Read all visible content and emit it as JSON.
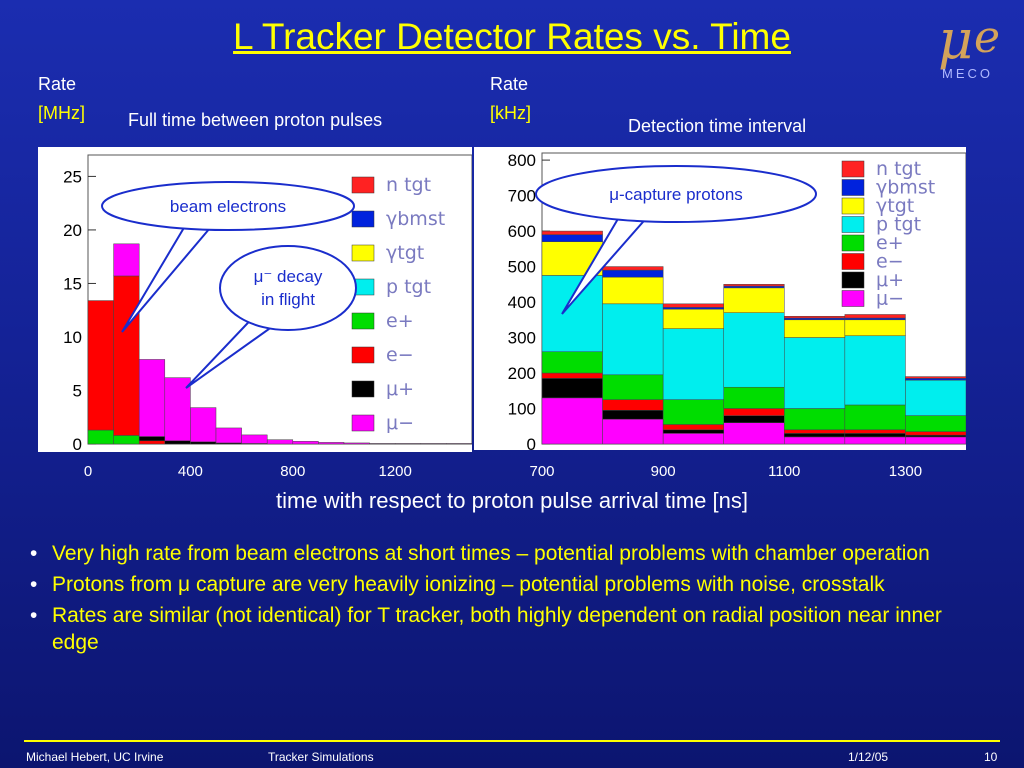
{
  "slide": {
    "title": "L Tracker Detector Rates vs. Time",
    "logo_text": "MECO",
    "x_axis_title": "time with respect to proton pulse arrival time [ns]",
    "bullets": [
      "Very high rate from beam electrons at short times – potential problems with chamber operation",
      "Protons from μ capture are very heavily ionizing – potential problems with noise, crosstalk",
      "Rates are similar (not identical) for T tracker, both highly dependent on radial position near inner edge"
    ],
    "footer": {
      "author": "Michael Hebert, UC Irvine",
      "topic": "Tracker Simulations",
      "date": "1/12/05",
      "page": "10"
    }
  },
  "chart_data": [
    {
      "type": "bar",
      "stacked": true,
      "subtitle": "Full time between proton pulses",
      "ylabel_line1": "Rate",
      "ylabel_line2": "[MHz]",
      "ylim": [
        0,
        27
      ],
      "yticks": [
        "25",
        "20",
        "15",
        "10",
        "5",
        "0"
      ],
      "xticks": [
        "0",
        "400",
        "800",
        "1200"
      ],
      "x_bins": [
        0,
        100,
        200,
        300,
        400,
        500,
        600,
        700,
        800,
        900,
        1000,
        1100,
        1200,
        1300,
        1400,
        1500
      ],
      "legend": [
        "n tgt",
        "γbmst",
        "γtgt",
        "p tgt",
        "e+",
        "e−",
        "μ+",
        "μ−"
      ],
      "legend_colors": [
        "#ff2222",
        "#0022dd",
        "#ffff00",
        "#00eeee",
        "#00dd00",
        "#ff0000",
        "#000000",
        "#ff00ff"
      ],
      "series": [
        {
          "name": "e+",
          "color": "#00dd00",
          "values": [
            1.3,
            0.8,
            0.0,
            0.0,
            0.0,
            0.0,
            0.0,
            0.0,
            0.0,
            0.0,
            0.0,
            0.0,
            0.0,
            0.0,
            0.0
          ]
        },
        {
          "name": "e−",
          "color": "#ff0000",
          "values": [
            12.1,
            14.9,
            0.3,
            0.0,
            0.0,
            0.0,
            0.0,
            0.0,
            0.0,
            0.0,
            0.0,
            0.0,
            0.0,
            0.0,
            0.0
          ]
        },
        {
          "name": "μ+",
          "color": "#000000",
          "values": [
            0.0,
            0.0,
            0.4,
            0.3,
            0.2,
            0.1,
            0.05,
            0.0,
            0.0,
            0.0,
            0.0,
            0.0,
            0.0,
            0.0,
            0.0
          ]
        },
        {
          "name": "μ−",
          "color": "#ff00ff",
          "values": [
            0.0,
            3.0,
            7.2,
            5.9,
            3.2,
            1.4,
            0.8,
            0.4,
            0.25,
            0.15,
            0.1,
            0.05,
            0.05,
            0.05,
            0.05
          ]
        }
      ],
      "annotations": [
        {
          "text": "beam electrons"
        },
        {
          "text_line1": "μ⁻ decay",
          "text_line2": "in flight"
        }
      ]
    },
    {
      "type": "bar",
      "stacked": true,
      "subtitle": "Detection time interval",
      "ylabel_line1": "Rate",
      "ylabel_line2": "[kHz]",
      "ylim": [
        0,
        820
      ],
      "yticks": [
        "800",
        "700",
        "600",
        "500",
        "400",
        "300",
        "200",
        "100",
        "0"
      ],
      "xticks": [
        "700",
        "900",
        "1100",
        "1300"
      ],
      "x_bins": [
        700,
        800,
        900,
        1000,
        1100,
        1200,
        1300,
        1400
      ],
      "legend": [
        "n tgt",
        "γbmst",
        "γtgt",
        "p tgt",
        "e+",
        "e−",
        "μ+",
        "μ−"
      ],
      "legend_colors": [
        "#ff2222",
        "#0022dd",
        "#ffff00",
        "#00eeee",
        "#00dd00",
        "#ff0000",
        "#000000",
        "#ff00ff"
      ],
      "series": [
        {
          "name": "μ−",
          "color": "#ff00ff",
          "values": [
            130,
            70,
            30,
            60,
            20,
            20,
            20
          ]
        },
        {
          "name": "μ+",
          "color": "#000000",
          "values": [
            55,
            25,
            10,
            20,
            10,
            10,
            5
          ]
        },
        {
          "name": "e−",
          "color": "#ff0000",
          "values": [
            15,
            30,
            15,
            20,
            10,
            10,
            10
          ]
        },
        {
          "name": "e+",
          "color": "#00dd00",
          "values": [
            60,
            70,
            70,
            60,
            60,
            70,
            45
          ]
        },
        {
          "name": "p tgt",
          "color": "#00eeee",
          "values": [
            215,
            200,
            200,
            210,
            200,
            195,
            100
          ]
        },
        {
          "name": "γtgt",
          "color": "#ffff00",
          "values": [
            95,
            75,
            55,
            70,
            50,
            45,
            0
          ]
        },
        {
          "name": "γbmst",
          "color": "#0022dd",
          "values": [
            20,
            20,
            5,
            5,
            5,
            5,
            5
          ]
        },
        {
          "name": "n tgt",
          "color": "#ff2222",
          "values": [
            10,
            10,
            10,
            5,
            5,
            10,
            5
          ]
        }
      ],
      "annotations": [
        {
          "text": "μ-capture protons"
        }
      ]
    }
  ]
}
